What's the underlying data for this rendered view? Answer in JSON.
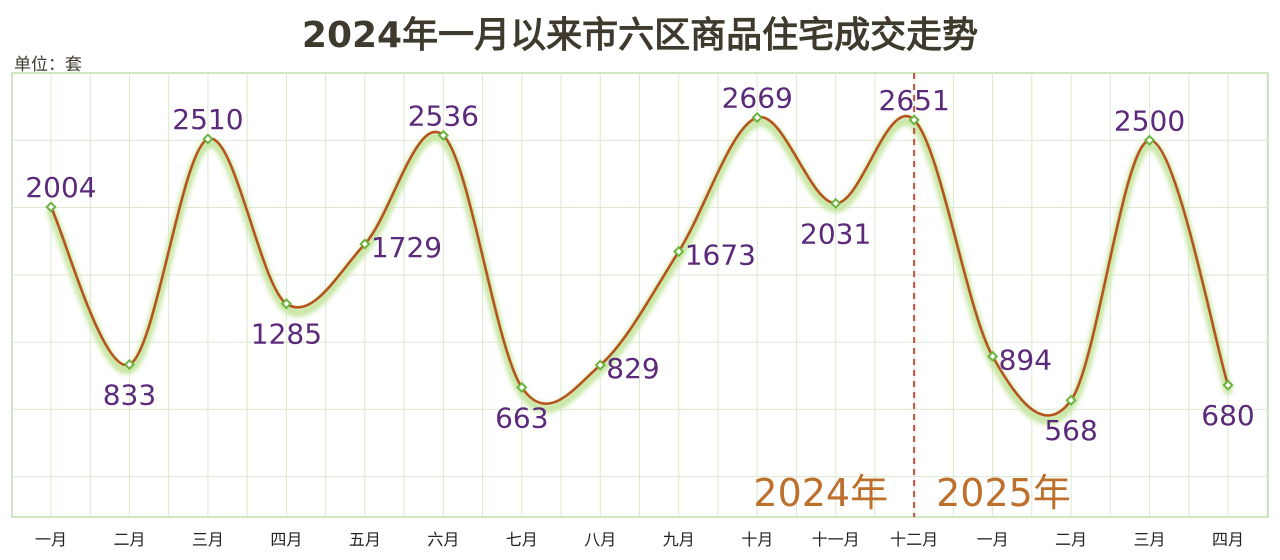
{
  "title": "2024年一月以来市六区商品住宅成交走势",
  "unit_label": "单位：套",
  "colors": {
    "line": "#b5541c",
    "glow": "#c9e7a7",
    "marker": "#6cb33f",
    "label": "#5b2a7a",
    "year_label": "#bd6f2c",
    "divider": "#c64d3a",
    "grid": "#dbe8d0",
    "frame": "#9fcf86",
    "title": "#3f3a2e"
  },
  "chart_data": {
    "type": "line",
    "title": "2024年一月以来市六区商品住宅成交走势",
    "ylabel": "单位：套",
    "xlabel": "",
    "categories": [
      "一月",
      "二月",
      "三月",
      "四月",
      "五月",
      "六月",
      "七月",
      "八月",
      "九月",
      "十月",
      "十一月",
      "十二月",
      "一月",
      "二月",
      "三月",
      "四月"
    ],
    "series": [
      {
        "values": [
          2004,
          833,
          2510,
          1285,
          1729,
          2536,
          663,
          829,
          1673,
          2669,
          2031,
          2651,
          894,
          568,
          2500,
          680
        ]
      }
    ],
    "ylim": [
      -300,
      3000
    ],
    "grid": true,
    "legend": "none",
    "divider_after_index": 11,
    "annotations": [
      "2024年",
      "2025年"
    ]
  }
}
